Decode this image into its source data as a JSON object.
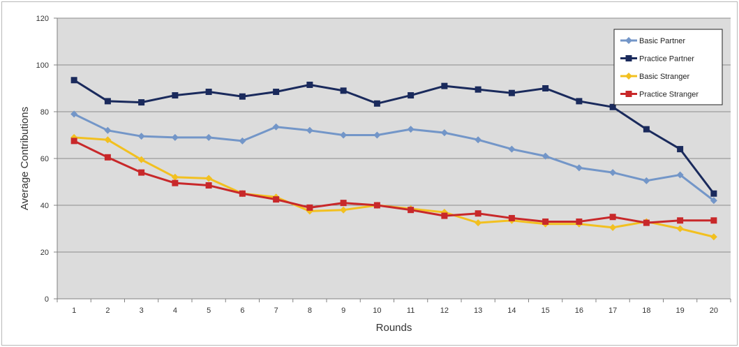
{
  "chart_data": {
    "type": "line",
    "title": "",
    "xlabel": "Rounds",
    "ylabel": "Average Contributions",
    "ylim": [
      0,
      120
    ],
    "yticks": [
      0,
      20,
      40,
      60,
      80,
      100,
      120
    ],
    "grid": "horizontal",
    "plot_background": "#dcdcdc",
    "legend_position": "top-right",
    "categories": [
      "1",
      "2",
      "3",
      "4",
      "5",
      "6",
      "7",
      "8",
      "9",
      "10",
      "11",
      "12",
      "13",
      "14",
      "15",
      "16",
      "17",
      "18",
      "19",
      "20"
    ],
    "series": [
      {
        "name": "Basic Partner",
        "color": "#7396c8",
        "marker": "diamond",
        "values": [
          79,
          72,
          69.5,
          69,
          69,
          67.5,
          73.5,
          72,
          70,
          70,
          72.5,
          71,
          68,
          64,
          61,
          56,
          54,
          50.5,
          53,
          42
        ]
      },
      {
        "name": "Practice Partner",
        "color": "#1a2a5c",
        "marker": "square",
        "values": [
          93.5,
          84.5,
          84,
          87,
          88.5,
          86.5,
          88.5,
          91.5,
          89,
          83.5,
          87,
          91,
          89.5,
          88,
          90,
          84.5,
          82,
          72.5,
          64,
          45
        ]
      },
      {
        "name": "Basic Stranger",
        "color": "#f2c020",
        "marker": "diamond",
        "values": [
          69,
          68,
          59.5,
          52,
          51.5,
          45,
          43.5,
          37.5,
          38,
          40,
          38.5,
          37,
          32.5,
          33.5,
          32,
          32,
          30.5,
          33,
          30,
          26.5
        ]
      },
      {
        "name": "Practice Stranger",
        "color": "#c8282a",
        "marker": "square",
        "values": [
          67.5,
          60.5,
          54,
          49.5,
          48.5,
          45,
          42.5,
          39,
          41,
          40,
          38,
          35.5,
          36.5,
          34.5,
          33,
          33,
          35,
          32.5,
          33.5,
          33.5
        ]
      }
    ]
  }
}
